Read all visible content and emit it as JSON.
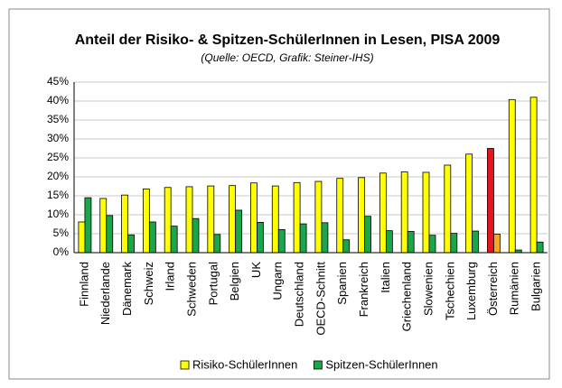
{
  "chart_data": {
    "type": "bar",
    "title": "Anteil der Risiko- & Spitzen-SchülerInnen in Lesen, PISA 2009",
    "subtitle": "(Quelle: OECD, Grafik: Steiner-IHS)",
    "categories": [
      "Finnland",
      "Niederlande",
      "Dänemark",
      "Schweiz",
      "Irland",
      "Schweden",
      "Portugal",
      "Belgien",
      "UK",
      "Ungarn",
      "Deutschland",
      "OECD-Schnitt",
      "Spanien",
      "Frankreich",
      "Italien",
      "Griechenland",
      "Slowenien",
      "Tschechien",
      "Luxemburg",
      "Österreich",
      "Rumänien",
      "Bulgarien"
    ],
    "series": [
      {
        "name": "Risiko-SchülerInnen",
        "color": "#ffff00",
        "point_colors": [
          "#ffff00",
          "#ffff00",
          "#ffff00",
          "#ffff00",
          "#ffff00",
          "#ffff00",
          "#ffff00",
          "#ffff00",
          "#ffff00",
          "#ffff00",
          "#ffff00",
          "#ffff00",
          "#ffff00",
          "#ffff00",
          "#ffff00",
          "#ffff00",
          "#ffff00",
          "#ffff00",
          "#ffff00",
          "#e8141c",
          "#ffff00",
          "#ffff00"
        ],
        "values": [
          8.1,
          14.3,
          15.2,
          16.8,
          17.2,
          17.4,
          17.6,
          17.7,
          18.4,
          17.6,
          18.5,
          18.8,
          19.6,
          19.8,
          21.0,
          21.3,
          21.2,
          23.1,
          26.0,
          27.5,
          40.4,
          41.0
        ]
      },
      {
        "name": "Spitzen-SchülerInnen",
        "color": "#1aa64a",
        "point_colors": [
          "#1aa64a",
          "#1aa64a",
          "#1aa64a",
          "#1aa64a",
          "#1aa64a",
          "#1aa64a",
          "#1aa64a",
          "#1aa64a",
          "#1aa64a",
          "#1aa64a",
          "#1aa64a",
          "#1aa64a",
          "#1aa64a",
          "#1aa64a",
          "#1aa64a",
          "#1aa64a",
          "#1aa64a",
          "#1aa64a",
          "#1aa64a",
          "#f5a623",
          "#1aa64a",
          "#1aa64a"
        ],
        "values": [
          14.5,
          9.8,
          4.7,
          8.1,
          7.0,
          9.0,
          4.8,
          11.2,
          8.0,
          6.1,
          7.6,
          7.9,
          3.4,
          9.6,
          5.8,
          5.6,
          4.6,
          5.1,
          5.7,
          4.9,
          0.7,
          2.8
        ]
      }
    ],
    "ylim": [
      0,
      45
    ],
    "yticks": [
      {
        "value": 0,
        "label": "0%"
      },
      {
        "value": 5,
        "label": "5%"
      },
      {
        "value": 10,
        "label": "10%"
      },
      {
        "value": 15,
        "label": "15%"
      },
      {
        "value": 20,
        "label": "20%"
      },
      {
        "value": 25,
        "label": "25%"
      },
      {
        "value": 30,
        "label": "30%"
      },
      {
        "value": 35,
        "label": "35%"
      },
      {
        "value": 40,
        "label": "40%"
      },
      {
        "value": 45,
        "label": "45%"
      }
    ],
    "grid": true
  }
}
